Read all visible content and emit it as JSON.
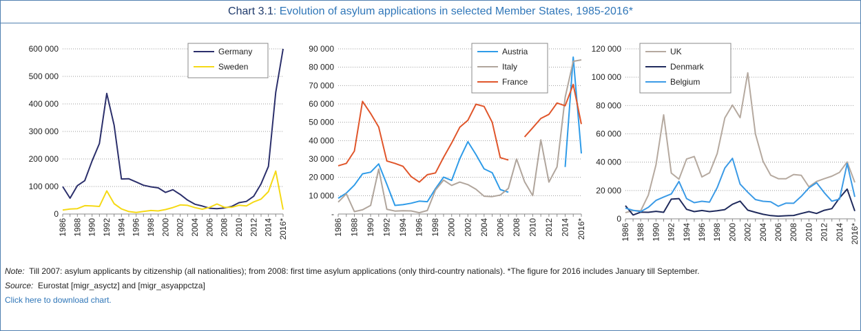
{
  "header": {
    "label": "Chart 3.1",
    "title": ": Evolution of asylum applications in selected Member States, 1985-2016*"
  },
  "notes": {
    "note_label": "Note:",
    "note": "Till 2007: asylum applicants by citizenship (all nationalities); from 2008: first time asylum applications (only third-country nationals). *The figure for 2016 includes January till September.",
    "source_label": "Source:",
    "source": "Eurostat [migr_asyctz] and [migr_asyappctza]",
    "link": "Click here to download chart."
  },
  "chart_data": [
    {
      "type": "line",
      "legend": "upper right",
      "grid": true,
      "categories": [
        "1986",
        null,
        "1988",
        null,
        "1990",
        null,
        "1992",
        null,
        "1994",
        null,
        "1996",
        null,
        "1998",
        null,
        "2000",
        null,
        "2002",
        null,
        "2004",
        null,
        "2006",
        null,
        "2008",
        null,
        "2010",
        null,
        "2012",
        null,
        "2014",
        null,
        "2016*"
      ],
      "ylim": [
        0,
        600000
      ],
      "yticks": [
        0,
        {
          "value": 100000,
          "label": "100 000"
        },
        {
          "value": 200000,
          "label": "200 000"
        },
        {
          "value": 300000,
          "label": "300 000"
        },
        {
          "value": 400000,
          "label": "400 000"
        },
        {
          "value": 500000,
          "label": "500 000"
        },
        {
          "value": 600000,
          "label": "600 000"
        }
      ],
      "series": [
        {
          "name": "Germany",
          "color": "#2b2f6b",
          "values": [
            99650,
            57400,
            103000,
            121000,
            193000,
            256000,
            438000,
            322600,
            127200,
            127900,
            116400,
            104400,
            98700,
            95100,
            78600,
            88300,
            71100,
            50600,
            35600,
            28900,
            21000,
            19200,
            22100,
            27600,
            41300,
            45700,
            64400,
            109600,
            173000,
            441800,
            600000
          ]
        },
        {
          "name": "Sweden",
          "color": "#f5d915",
          "values": [
            14600,
            18100,
            19600,
            30300,
            29400,
            27400,
            84000,
            37600,
            18600,
            9000,
            5800,
            9600,
            12800,
            11200,
            16300,
            23500,
            33000,
            31400,
            23200,
            17500,
            24300,
            36400,
            24400,
            24200,
            31800,
            29600,
            43900,
            54300,
            81200,
            156100,
            16000
          ]
        }
      ]
    },
    {
      "type": "line",
      "legend": "upper right",
      "grid": true,
      "categories": [
        "1986",
        null,
        "1988",
        null,
        "1990",
        null,
        "1992",
        null,
        "1994",
        null,
        "1996",
        null,
        "1998",
        null,
        "2000",
        null,
        "2002",
        null,
        "2004",
        null,
        "2006",
        null,
        "2008",
        null,
        "2010",
        null,
        "2012",
        null,
        "2014",
        null,
        "2016*"
      ],
      "ylim": [
        0,
        90000
      ],
      "yticks": [
        {
          "value": 0,
          "label": "-"
        },
        {
          "value": 10000,
          "label": "10 000"
        },
        {
          "value": 20000,
          "label": "20 000"
        },
        {
          "value": 30000,
          "label": "30 000"
        },
        {
          "value": 40000,
          "label": "40 000"
        },
        {
          "value": 50000,
          "label": "50 000"
        },
        {
          "value": 60000,
          "label": "60 000"
        },
        {
          "value": 70000,
          "label": "70 000"
        },
        {
          "value": 80000,
          "label": "80 000"
        },
        {
          "value": 90000,
          "label": "90 000"
        }
      ],
      "series": [
        {
          "name": "Austria",
          "color": "#2e9be8",
          "values": [
            8600,
            11400,
            15800,
            21900,
            22800,
            27300,
            16200,
            4700,
            5100,
            5900,
            7000,
            6700,
            13800,
            20100,
            18300,
            30100,
            39400,
            32400,
            24600,
            22500,
            13300,
            11900,
            null,
            null,
            null,
            null,
            null,
            null,
            25600,
            85500,
            33000
          ]
        },
        {
          "name": "Italy",
          "color": "#b0a59c",
          "values": [
            6500,
            11000,
            1300,
            2300,
            4700,
            24500,
            2600,
            1600,
            1800,
            1700,
            700,
            1900,
            13000,
            18500,
            15600,
            17400,
            16000,
            13500,
            9700,
            9500,
            10300,
            14000,
            30000,
            17600,
            10000,
            40400,
            17400,
            25700,
            63600,
            83200,
            84000
          ]
        },
        {
          "name": "France",
          "color": "#e0552a",
          "values": [
            26300,
            27600,
            34300,
            61400,
            54800,
            47400,
            28900,
            27600,
            26000,
            20400,
            17400,
            21400,
            22400,
            30900,
            38700,
            47300,
            51100,
            59800,
            58600,
            50000,
            30700,
            29400,
            null,
            42000,
            47000,
            52100,
            54300,
            60500,
            59000,
            70600,
            49000
          ]
        }
      ]
    },
    {
      "type": "line",
      "legend": "upper left",
      "grid": true,
      "categories": [
        "1986",
        null,
        "1988",
        null,
        "1990",
        null,
        "1992",
        null,
        "1994",
        null,
        "1996",
        null,
        "1998",
        null,
        "2000",
        null,
        "2002",
        null,
        "2004",
        null,
        "2006",
        null,
        "2008",
        null,
        "2010",
        null,
        "2012",
        null,
        "2014",
        null,
        "2016*"
      ],
      "ylim": [
        0,
        120000
      ],
      "yticks": [
        0,
        {
          "value": 20000,
          "label": "20 000"
        },
        {
          "value": 40000,
          "label": "40 000"
        },
        {
          "value": 60000,
          "label": "60 000"
        },
        {
          "value": 80000,
          "label": "80 000"
        },
        {
          "value": 100000,
          "label": "100 000"
        },
        {
          "value": 120000,
          "label": "120 000"
        }
      ],
      "series": [
        {
          "name": "UK",
          "color": "#b5a99f",
          "values": [
            4300,
            5900,
            5700,
            16800,
            38200,
            73400,
            32300,
            28000,
            42200,
            44000,
            29600,
            32500,
            46000,
            71200,
            80300,
            71400,
            103100,
            60000,
            40600,
            30800,
            28300,
            28300,
            31300,
            30700,
            22600,
            26400,
            28300,
            30100,
            32800,
            40200,
            25700
          ]
        },
        {
          "name": "Denmark",
          "color": "#1f2a5c",
          "values": [
            9300,
            2700,
            4700,
            4600,
            5300,
            4600,
            13900,
            14300,
            6700,
            5100,
            5900,
            5100,
            5700,
            6500,
            10300,
            12500,
            6100,
            4600,
            3200,
            2300,
            1900,
            2200,
            2400,
            3800,
            5100,
            3800,
            6000,
            7200,
            14700,
            21000,
            5500
          ]
        },
        {
          "name": "Belgium",
          "color": "#3a9ae6",
          "values": [
            7600,
            6000,
            5100,
            8100,
            13000,
            15400,
            17600,
            26400,
            14300,
            11400,
            12400,
            11800,
            22000,
            35800,
            42700,
            24500,
            18800,
            13600,
            12400,
            12000,
            8900,
            11100,
            11000,
            15900,
            21800,
            25500,
            18500,
            12500,
            13900,
            39000,
            15500
          ]
        }
      ]
    }
  ]
}
